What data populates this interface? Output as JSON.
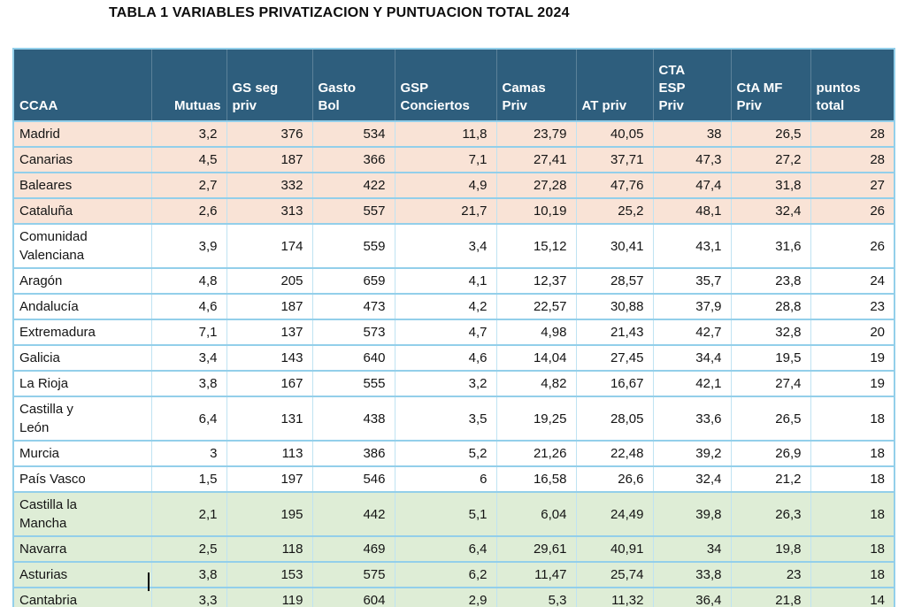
{
  "title": "TABLA 1 VARIABLES PRIVATIZACION Y PUNTUACION TOTAL 2024",
  "colors": {
    "header_bg": "#2E5E7D",
    "header_text": "#ffffff",
    "row_top_bg": "#F9E3D6",
    "row_mid_bg": "#ffffff",
    "row_bottom_bg": "#DEEDD6",
    "grid_border": "#93CFEA",
    "column_border": "#BFE3F2"
  },
  "table": {
    "header": {
      "labels": [
        "CCAA",
        "Mutuas",
        "GS seg\npriv",
        "Gasto\nBol",
        "GSP\nConciertos",
        "Camas\nPriv",
        "AT priv",
        "CTA\nESP\nPriv",
        "CtA MF\nPriv",
        "puntos\ntotal"
      ]
    },
    "rows": [
      {
        "display": "Madrid",
        "group": "top",
        "values": [
          "3,2",
          "376",
          "534",
          "11,8",
          "23,79",
          "40,05",
          "38",
          "26,5",
          "28"
        ]
      },
      {
        "display": "Canarias",
        "group": "top",
        "values": [
          "4,5",
          "187",
          "366",
          "7,1",
          "27,41",
          "37,71",
          "47,3",
          "27,2",
          "28"
        ]
      },
      {
        "display": "Baleares",
        "group": "top",
        "values": [
          "2,7",
          "332",
          "422",
          "4,9",
          "27,28",
          "47,76",
          "47,4",
          "31,8",
          "27"
        ]
      },
      {
        "display": "Cataluña",
        "group": "top",
        "values": [
          "2,6",
          "313",
          "557",
          "21,7",
          "10,19",
          "25,2",
          "48,1",
          "32,4",
          "26"
        ]
      },
      {
        "display": "Comunidad\nValenciana",
        "group": "mid",
        "values": [
          "3,9",
          "174",
          "559",
          "3,4",
          "15,12",
          "30,41",
          "43,1",
          "31,6",
          "26"
        ]
      },
      {
        "display": "Aragón",
        "group": "mid",
        "values": [
          "4,8",
          "205",
          "659",
          "4,1",
          "12,37",
          "28,57",
          "35,7",
          "23,8",
          "24"
        ]
      },
      {
        "display": "Andalucía",
        "group": "mid",
        "values": [
          "4,6",
          "187",
          "473",
          "4,2",
          "22,57",
          "30,88",
          "37,9",
          "28,8",
          "23"
        ]
      },
      {
        "display": "Extremadura",
        "group": "mid",
        "values": [
          "7,1",
          "137",
          "573",
          "4,7",
          "4,98",
          "21,43",
          "42,7",
          "32,8",
          "20"
        ]
      },
      {
        "display": "Galicia",
        "group": "mid",
        "values": [
          "3,4",
          "143",
          "640",
          "4,6",
          "14,04",
          "27,45",
          "34,4",
          "19,5",
          "19"
        ]
      },
      {
        "display": "La Rioja",
        "group": "mid",
        "values": [
          "3,8",
          "167",
          "555",
          "3,2",
          "4,82",
          "16,67",
          "42,1",
          "27,4",
          "19"
        ]
      },
      {
        "display": "Castilla y\nLeón",
        "group": "mid",
        "values": [
          "6,4",
          "131",
          "438",
          "3,5",
          "19,25",
          "28,05",
          "33,6",
          "26,5",
          "18"
        ]
      },
      {
        "display": "Murcia",
        "group": "mid",
        "values": [
          "3",
          "113",
          "386",
          "5,2",
          "21,26",
          "22,48",
          "39,2",
          "26,9",
          "18"
        ]
      },
      {
        "display": "País Vasco",
        "group": "mid",
        "values": [
          "1,5",
          "197",
          "546",
          "6",
          "16,58",
          "26,6",
          "32,4",
          "21,2",
          "18"
        ]
      },
      {
        "display": "Castilla la\nMancha",
        "group": "bottom",
        "values": [
          "2,1",
          "195",
          "442",
          "5,1",
          "6,04",
          "24,49",
          "39,8",
          "26,3",
          "18"
        ]
      },
      {
        "display": "Navarra",
        "group": "bottom",
        "values": [
          "2,5",
          "118",
          "469",
          "6,4",
          "29,61",
          "40,91",
          "34",
          "19,8",
          "18"
        ]
      },
      {
        "display": "Asturias",
        "group": "bottom",
        "values": [
          "3,8",
          "153",
          "575",
          "6,2",
          "11,47",
          "25,74",
          "33,8",
          "23",
          "18"
        ]
      },
      {
        "display": "Cantabria",
        "group": "bottom",
        "values": [
          "3,3",
          "119",
          "604",
          "2,9",
          "5,3",
          "11,32",
          "36,4",
          "21,8",
          "14"
        ]
      }
    ]
  },
  "chart_data": {
    "type": "table",
    "title": "TABLA 1 VARIABLES PRIVATIZACION Y PUNTUACION TOTAL 2024",
    "columns": [
      "CCAA",
      "Mutuas",
      "GS seg priv",
      "Gasto Bol",
      "GSP Conciertos",
      "Camas Priv",
      "AT priv",
      "CTA ESP Priv",
      "CtA MF Priv",
      "puntos total"
    ],
    "rows": [
      [
        "Madrid",
        3.2,
        376,
        534,
        11.8,
        23.79,
        40.05,
        38,
        26.5,
        28
      ],
      [
        "Canarias",
        4.5,
        187,
        366,
        7.1,
        27.41,
        37.71,
        47.3,
        27.2,
        28
      ],
      [
        "Baleares",
        2.7,
        332,
        422,
        4.9,
        27.28,
        47.76,
        47.4,
        31.8,
        27
      ],
      [
        "Cataluña",
        2.6,
        313,
        557,
        21.7,
        10.19,
        25.2,
        48.1,
        32.4,
        26
      ],
      [
        "Comunidad Valenciana",
        3.9,
        174,
        559,
        3.4,
        15.12,
        30.41,
        43.1,
        31.6,
        26
      ],
      [
        "Aragón",
        4.8,
        205,
        659,
        4.1,
        12.37,
        28.57,
        35.7,
        23.8,
        24
      ],
      [
        "Andalucía",
        4.6,
        187,
        473,
        4.2,
        22.57,
        30.88,
        37.9,
        28.8,
        23
      ],
      [
        "Extremadura",
        7.1,
        137,
        573,
        4.7,
        4.98,
        21.43,
        42.7,
        32.8,
        20
      ],
      [
        "Galicia",
        3.4,
        143,
        640,
        4.6,
        14.04,
        27.45,
        34.4,
        19.5,
        19
      ],
      [
        "La Rioja",
        3.8,
        167,
        555,
        3.2,
        4.82,
        16.67,
        42.1,
        27.4,
        19
      ],
      [
        "Castilla y León",
        6.4,
        131,
        438,
        3.5,
        19.25,
        28.05,
        33.6,
        26.5,
        18
      ],
      [
        "Murcia",
        3,
        113,
        386,
        5.2,
        21.26,
        22.48,
        39.2,
        26.9,
        18
      ],
      [
        "País Vasco",
        1.5,
        197,
        546,
        6,
        16.58,
        26.6,
        32.4,
        21.2,
        18
      ],
      [
        "Castilla la Mancha",
        2.1,
        195,
        442,
        5.1,
        6.04,
        24.49,
        39.8,
        26.3,
        18
      ],
      [
        "Navarra",
        2.5,
        118,
        469,
        6.4,
        29.61,
        40.91,
        34,
        19.8,
        18
      ],
      [
        "Asturias",
        3.8,
        153,
        575,
        6.2,
        11.47,
        25.74,
        33.8,
        23,
        18
      ],
      [
        "Cantabria",
        3.3,
        119,
        604,
        2.9,
        5.3,
        11.32,
        36.4,
        21.8,
        14
      ]
    ],
    "row_group_highlight": {
      "top_salmon": [
        "Madrid",
        "Canarias",
        "Baleares",
        "Cataluña"
      ],
      "bottom_green": [
        "Castilla la Mancha",
        "Navarra",
        "Asturias",
        "Cantabria"
      ]
    }
  }
}
